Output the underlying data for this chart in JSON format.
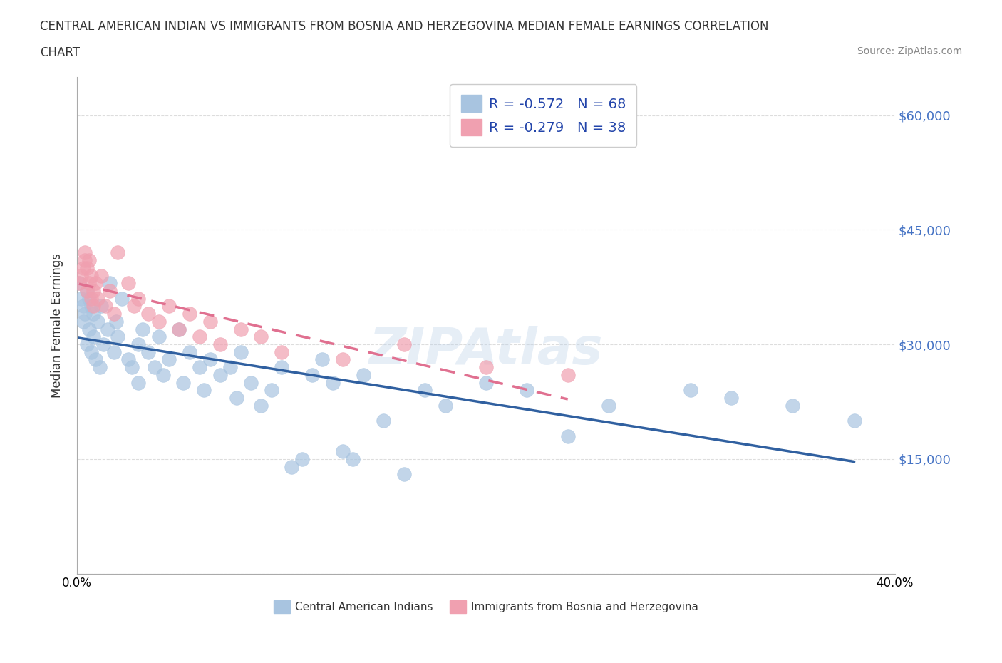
{
  "title_line1": "CENTRAL AMERICAN INDIAN VS IMMIGRANTS FROM BOSNIA AND HERZEGOVINA MEDIAN FEMALE EARNINGS CORRELATION",
  "title_line2": "CHART",
  "source_text": "Source: ZipAtlas.com",
  "xlabel": "",
  "ylabel": "Median Female Earnings",
  "xlim": [
    0.0,
    0.4
  ],
  "ylim": [
    0,
    65000
  ],
  "yticks": [
    0,
    15000,
    30000,
    45000,
    60000
  ],
  "ytick_labels": [
    "",
    "$15,000",
    "$30,000",
    "$45,000",
    "$60,000"
  ],
  "xticks": [
    0.0,
    0.05,
    0.1,
    0.15,
    0.2,
    0.25,
    0.3,
    0.35,
    0.4
  ],
  "xtick_labels": [
    "0.0%",
    "",
    "",
    "",
    "",
    "",
    "",
    "",
    "40.0%"
  ],
  "r_blue": -0.572,
  "n_blue": 68,
  "r_pink": -0.279,
  "n_pink": 38,
  "blue_color": "#a8c4e0",
  "pink_color": "#f0a0b0",
  "blue_line_color": "#3060a0",
  "pink_line_color": "#e07090",
  "legend_blue_color": "#a8c4e0",
  "legend_pink_color": "#f0a0b0",
  "watermark": "ZIPAtlas",
  "blue_scatter_x": [
    0.001,
    0.002,
    0.003,
    0.003,
    0.004,
    0.005,
    0.005,
    0.006,
    0.006,
    0.007,
    0.007,
    0.008,
    0.008,
    0.009,
    0.01,
    0.011,
    0.012,
    0.013,
    0.015,
    0.016,
    0.018,
    0.019,
    0.02,
    0.022,
    0.025,
    0.027,
    0.03,
    0.03,
    0.032,
    0.035,
    0.038,
    0.04,
    0.042,
    0.045,
    0.05,
    0.052,
    0.055,
    0.06,
    0.062,
    0.065,
    0.07,
    0.075,
    0.078,
    0.08,
    0.085,
    0.09,
    0.095,
    0.1,
    0.105,
    0.11,
    0.115,
    0.12,
    0.125,
    0.13,
    0.135,
    0.14,
    0.15,
    0.16,
    0.17,
    0.18,
    0.2,
    0.22,
    0.24,
    0.26,
    0.3,
    0.32,
    0.35,
    0.38
  ],
  "blue_scatter_y": [
    38000,
    36000,
    35000,
    33000,
    34000,
    37000,
    30000,
    36000,
    32000,
    35000,
    29000,
    34000,
    31000,
    28000,
    33000,
    27000,
    35000,
    30000,
    32000,
    38000,
    29000,
    33000,
    31000,
    36000,
    28000,
    27000,
    30000,
    25000,
    32000,
    29000,
    27000,
    31000,
    26000,
    28000,
    32000,
    25000,
    29000,
    27000,
    24000,
    28000,
    26000,
    27000,
    23000,
    29000,
    25000,
    22000,
    24000,
    27000,
    14000,
    15000,
    26000,
    28000,
    25000,
    16000,
    15000,
    26000,
    20000,
    13000,
    24000,
    22000,
    25000,
    24000,
    18000,
    22000,
    24000,
    23000,
    22000,
    20000
  ],
  "pink_scatter_x": [
    0.001,
    0.002,
    0.003,
    0.004,
    0.004,
    0.005,
    0.005,
    0.006,
    0.006,
    0.007,
    0.007,
    0.008,
    0.008,
    0.009,
    0.01,
    0.012,
    0.014,
    0.016,
    0.018,
    0.02,
    0.025,
    0.028,
    0.03,
    0.035,
    0.04,
    0.045,
    0.05,
    0.055,
    0.06,
    0.065,
    0.07,
    0.08,
    0.09,
    0.1,
    0.13,
    0.16,
    0.2,
    0.24
  ],
  "pink_scatter_y": [
    38000,
    39000,
    40000,
    41000,
    42000,
    40000,
    37000,
    41000,
    38000,
    36000,
    39000,
    37000,
    35000,
    38000,
    36000,
    39000,
    35000,
    37000,
    34000,
    42000,
    38000,
    35000,
    36000,
    34000,
    33000,
    35000,
    32000,
    34000,
    31000,
    33000,
    30000,
    32000,
    31000,
    29000,
    28000,
    30000,
    27000,
    26000
  ]
}
